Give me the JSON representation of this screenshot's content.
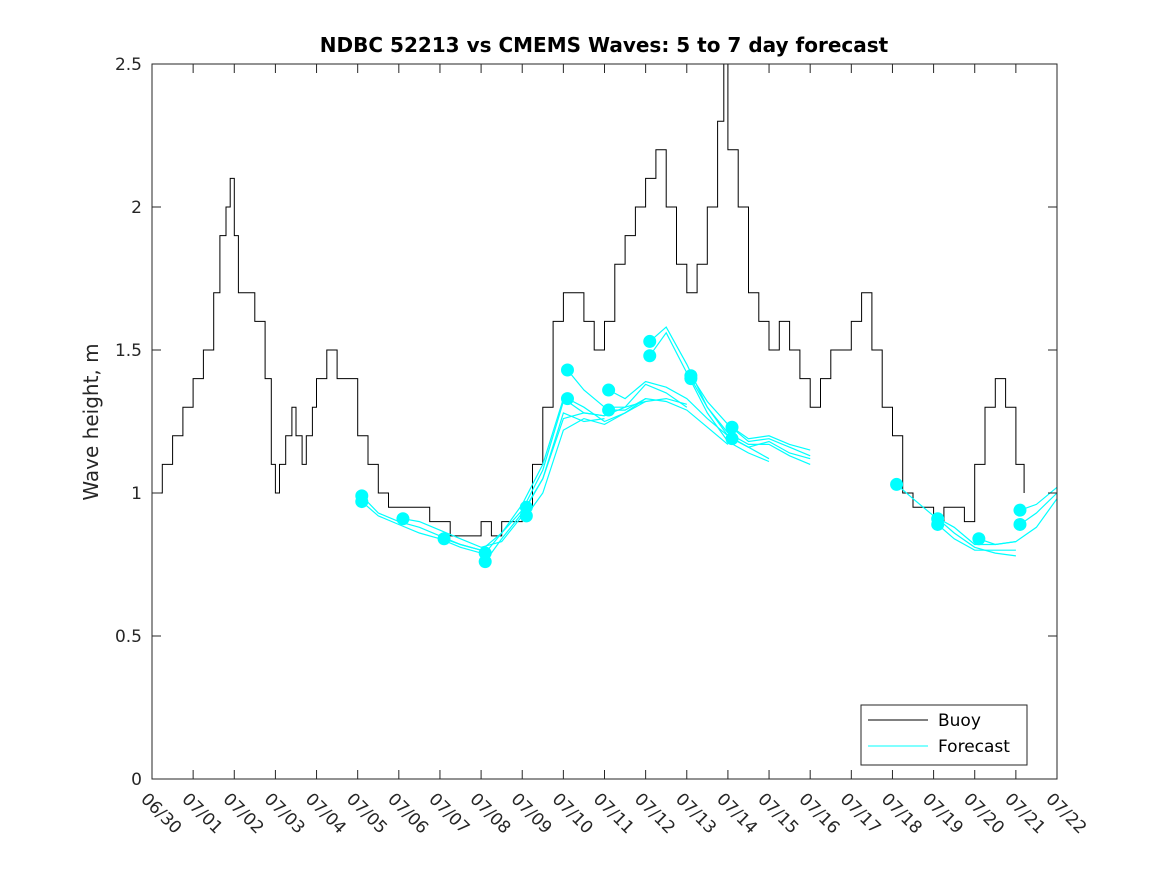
{
  "chart_data": {
    "type": "line",
    "title": "NDBC 52213 vs CMEMS Waves: 5 to 7 day forecast",
    "xlabel": "",
    "ylabel": "Wave height, m",
    "ylim": [
      0,
      2.5
    ],
    "yticks": [
      "0",
      "0.5",
      "1",
      "1.5",
      "2",
      "2.5"
    ],
    "xlim_days": [
      0,
      22
    ],
    "xticks": [
      "06/30",
      "07/01",
      "07/02",
      "07/03",
      "07/04",
      "07/05",
      "07/06",
      "07/07",
      "07/08",
      "07/09",
      "07/10",
      "07/11",
      "07/12",
      "07/13",
      "07/14",
      "07/15",
      "07/16",
      "07/17",
      "07/18",
      "07/19",
      "07/20",
      "07/21",
      "07/22"
    ],
    "grid": false,
    "legend": {
      "location": "bottom-right",
      "entries": [
        {
          "label": "Buoy",
          "color": "#000000"
        },
        {
          "label": "Forecast",
          "color": "#00ffff"
        }
      ]
    },
    "series": [
      {
        "name": "Buoy",
        "color": "#000000",
        "x_days": [
          0.0,
          0.25,
          0.5,
          0.75,
          1.0,
          1.25,
          1.5,
          1.65,
          1.8,
          1.9,
          2.0,
          2.1,
          2.25,
          2.5,
          2.75,
          2.9,
          3.0,
          3.1,
          3.25,
          3.4,
          3.5,
          3.65,
          3.75,
          3.9,
          4.0,
          4.25,
          4.5,
          4.75,
          5.0,
          5.25,
          5.5,
          5.75,
          6.0,
          6.25,
          6.5,
          6.75,
          7.0,
          7.25,
          7.5,
          7.75,
          8.0,
          8.25,
          8.5,
          8.75,
          9.0,
          9.25,
          9.5,
          9.75,
          10.0,
          10.25,
          10.5,
          10.75,
          11.0,
          11.25,
          11.5,
          11.75,
          12.0,
          12.25,
          12.5,
          12.75,
          13.0,
          13.25,
          13.5,
          13.75,
          13.9,
          14.0,
          14.25,
          14.5,
          14.75,
          15.0,
          15.25,
          15.5,
          15.75,
          16.0,
          16.25,
          16.5,
          16.75,
          17.0,
          17.25,
          17.5,
          17.75,
          18.0,
          18.25,
          18.5,
          18.75,
          19.0,
          19.25,
          19.5,
          19.75,
          20.0,
          20.25,
          20.5,
          20.75,
          21.0,
          21.2
        ],
        "values": [
          1.0,
          1.1,
          1.2,
          1.3,
          1.4,
          1.5,
          1.7,
          1.9,
          2.0,
          2.1,
          1.9,
          1.7,
          1.7,
          1.6,
          1.4,
          1.1,
          1.0,
          1.1,
          1.2,
          1.3,
          1.2,
          1.1,
          1.2,
          1.3,
          1.4,
          1.5,
          1.4,
          1.4,
          1.2,
          1.1,
          1.0,
          0.95,
          0.95,
          0.95,
          0.95,
          0.9,
          0.9,
          0.85,
          0.85,
          0.85,
          0.9,
          0.85,
          0.9,
          0.9,
          0.95,
          1.1,
          1.3,
          1.6,
          1.7,
          1.7,
          1.6,
          1.5,
          1.6,
          1.8,
          1.9,
          2.0,
          2.1,
          2.2,
          2.0,
          1.8,
          1.7,
          1.8,
          2.0,
          2.3,
          2.5,
          2.2,
          2.0,
          1.7,
          1.6,
          1.5,
          1.6,
          1.5,
          1.4,
          1.3,
          1.4,
          1.5,
          1.5,
          1.6,
          1.7,
          1.5,
          1.3,
          1.2,
          1.0,
          0.95,
          0.95,
          0.9,
          0.95,
          0.95,
          0.9,
          1.1,
          1.3,
          1.4,
          1.3,
          1.1,
          1.0
        ]
      }
    ],
    "forecast_runs": [
      {
        "name": "Forecast",
        "color": "#00ffff",
        "x_days": [
          5.1,
          5.5,
          6.0,
          6.5,
          7.0,
          7.5,
          8.0
        ],
        "values": [
          0.99,
          0.93,
          0.9,
          0.88,
          0.85,
          0.82,
          0.8
        ]
      },
      {
        "name": "Forecast",
        "color": "#00ffff",
        "x_days": [
          5.1,
          5.5,
          6.0,
          6.5,
          7.0,
          7.5,
          8.0
        ],
        "values": [
          0.97,
          0.92,
          0.89,
          0.86,
          0.84,
          0.81,
          0.79
        ]
      },
      {
        "name": "Forecast",
        "color": "#00ffff",
        "x_days": [
          6.1,
          6.5,
          7.0,
          7.5,
          8.0,
          8.5,
          9.0
        ],
        "values": [
          0.91,
          0.9,
          0.87,
          0.84,
          0.81,
          0.83,
          0.92
        ]
      },
      {
        "name": "Forecast",
        "color": "#00ffff",
        "x_days": [
          7.1,
          7.5,
          8.0,
          8.5,
          9.0,
          9.5,
          10.0
        ],
        "values": [
          0.84,
          0.82,
          0.8,
          0.86,
          0.94,
          1.08,
          1.32
        ]
      },
      {
        "name": "Forecast",
        "color": "#00ffff",
        "x_days": [
          8.1,
          8.5,
          9.0,
          9.5,
          10.0,
          10.5,
          11.0
        ],
        "values": [
          0.76,
          0.84,
          0.93,
          1.05,
          1.28,
          1.25,
          1.26
        ]
      },
      {
        "name": "Forecast",
        "color": "#00ffff",
        "x_days": [
          8.1,
          8.5,
          9.0,
          9.5,
          10.0,
          10.5,
          11.0
        ],
        "values": [
          0.79,
          0.86,
          0.96,
          1.1,
          1.33,
          1.28,
          1.27
        ]
      },
      {
        "name": "Forecast",
        "color": "#00ffff",
        "x_days": [
          9.1,
          9.5,
          10.0,
          10.5,
          11.0,
          11.5,
          12.0
        ],
        "values": [
          0.92,
          1.0,
          1.22,
          1.26,
          1.24,
          1.28,
          1.33
        ]
      },
      {
        "name": "Forecast",
        "color": "#00ffff",
        "x_days": [
          9.1,
          9.5,
          10.0,
          10.5,
          11.0,
          11.5,
          12.0
        ],
        "values": [
          0.95,
          1.05,
          1.26,
          1.28,
          1.27,
          1.3,
          1.32
        ]
      },
      {
        "name": "Forecast",
        "color": "#00ffff",
        "x_days": [
          10.1,
          10.5,
          11.0,
          11.5,
          12.0,
          12.5,
          13.0
        ],
        "values": [
          1.43,
          1.36,
          1.3,
          1.3,
          1.38,
          1.35,
          1.3
        ]
      },
      {
        "name": "Forecast",
        "color": "#00ffff",
        "x_days": [
          10.1,
          10.5,
          11.0,
          11.5,
          12.0,
          12.5,
          13.0
        ],
        "values": [
          1.33,
          1.3,
          1.25,
          1.28,
          1.32,
          1.33,
          1.31
        ]
      },
      {
        "name": "Forecast",
        "color": "#00ffff",
        "x_days": [
          11.1,
          11.5,
          12.0,
          12.5,
          13.0,
          13.5,
          14.0
        ],
        "values": [
          1.36,
          1.33,
          1.39,
          1.37,
          1.33,
          1.26,
          1.2
        ]
      },
      {
        "name": "Forecast",
        "color": "#00ffff",
        "x_days": [
          11.1,
          11.5,
          12.0,
          12.5,
          13.0,
          13.5,
          14.0
        ],
        "values": [
          1.29,
          1.29,
          1.33,
          1.32,
          1.29,
          1.23,
          1.17
        ]
      },
      {
        "name": "Forecast",
        "color": "#00ffff",
        "x_days": [
          12.1,
          12.5,
          13.0,
          13.5,
          14.0,
          14.5,
          15.0
        ],
        "values": [
          1.53,
          1.58,
          1.45,
          1.3,
          1.2,
          1.16,
          1.12
        ]
      },
      {
        "name": "Forecast",
        "color": "#00ffff",
        "x_days": [
          12.1,
          12.5,
          13.0,
          13.5,
          14.0,
          14.5,
          15.0
        ],
        "values": [
          1.48,
          1.56,
          1.42,
          1.28,
          1.18,
          1.14,
          1.11
        ]
      },
      {
        "name": "Forecast",
        "color": "#00ffff",
        "x_days": [
          13.1,
          13.5,
          14.0,
          14.5,
          15.0,
          15.5,
          16.0
        ],
        "values": [
          1.41,
          1.32,
          1.24,
          1.18,
          1.19,
          1.16,
          1.13
        ]
      },
      {
        "name": "Forecast",
        "color": "#00ffff",
        "x_days": [
          13.1,
          13.5,
          14.0,
          14.5,
          15.0,
          15.5,
          16.0
        ],
        "values": [
          1.4,
          1.3,
          1.21,
          1.17,
          1.17,
          1.13,
          1.1
        ]
      },
      {
        "name": "Forecast",
        "color": "#00ffff",
        "x_days": [
          14.1,
          14.5,
          15.0,
          15.5,
          16.0
        ],
        "values": [
          1.23,
          1.19,
          1.2,
          1.17,
          1.15
        ]
      },
      {
        "name": "Forecast",
        "color": "#00ffff",
        "x_days": [
          14.1,
          14.5,
          15.0,
          15.5,
          16.0
        ],
        "values": [
          1.19,
          1.16,
          1.18,
          1.14,
          1.12
        ]
      },
      {
        "name": "Forecast",
        "color": "#00ffff",
        "x_days": [
          18.1,
          18.5,
          19.0,
          19.5,
          20.0,
          20.5,
          21.0
        ],
        "values": [
          1.03,
          0.98,
          0.92,
          0.88,
          0.82,
          0.82,
          0.83
        ]
      },
      {
        "name": "Forecast",
        "color": "#00ffff",
        "x_days": [
          19.1,
          19.5,
          20.0,
          20.5,
          21.0
        ],
        "values": [
          0.91,
          0.86,
          0.81,
          0.79,
          0.78
        ]
      },
      {
        "name": "Forecast",
        "color": "#00ffff",
        "x_days": [
          19.1,
          19.5,
          20.0,
          20.5,
          21.0
        ],
        "values": [
          0.89,
          0.84,
          0.8,
          0.8,
          0.8
        ]
      },
      {
        "name": "Forecast",
        "color": "#00ffff",
        "x_days": [
          20.1,
          20.5,
          21.0,
          21.5,
          22.0
        ],
        "values": [
          0.84,
          0.82,
          0.83,
          0.88,
          0.98
        ]
      },
      {
        "name": "Forecast",
        "color": "#00ffff",
        "x_days": [
          21.1,
          21.5,
          22.0
        ],
        "values": [
          0.94,
          0.96,
          1.02
        ]
      },
      {
        "name": "Forecast",
        "color": "#00ffff",
        "x_days": [
          21.1,
          21.5,
          22.0
        ],
        "values": [
          0.89,
          0.93,
          1.0
        ]
      }
    ]
  }
}
